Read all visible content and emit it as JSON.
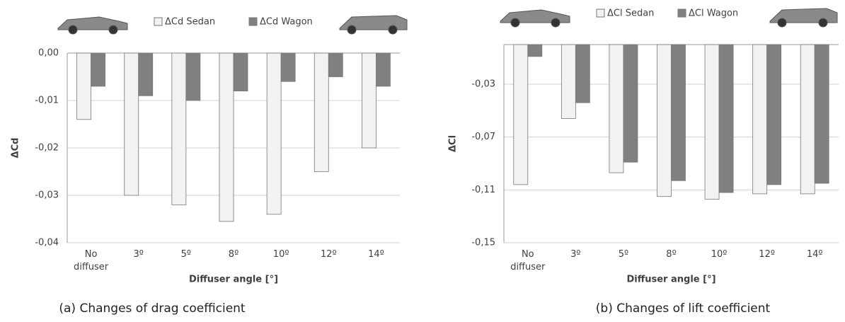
{
  "chart_data": [
    {
      "type": "bar",
      "caption": "(a) Changes of drag coefficient",
      "x_label": "Diffuser angle [°]",
      "y_label": "ΔCd",
      "categories": [
        "No diffuser",
        "3º",
        "5º",
        "8º",
        "10º",
        "12º",
        "14º"
      ],
      "series": [
        {
          "name": "ΔCd Sedan",
          "color": "#f2f2f2",
          "values": [
            -0.014,
            -0.03,
            -0.032,
            -0.0355,
            -0.034,
            -0.025,
            -0.02
          ]
        },
        {
          "name": "ΔCd Wagon",
          "color": "#808080",
          "values": [
            -0.007,
            -0.009,
            -0.01,
            -0.008,
            -0.006,
            -0.005,
            -0.007
          ]
        }
      ],
      "ylim": [
        -0.04,
        0
      ],
      "yticks": [
        {
          "value": 0,
          "label": "0,00"
        },
        {
          "value": -0.01,
          "label": "-0,01"
        },
        {
          "value": -0.02,
          "label": "-0,02"
        },
        {
          "value": -0.03,
          "label": "-0,03"
        },
        {
          "value": -0.04,
          "label": "-0,04"
        }
      ],
      "grid": true
    },
    {
      "type": "bar",
      "caption": "(b) Changes of lift coefficient",
      "x_label": "Diffuser angle [°]",
      "y_label": "ΔCl",
      "categories": [
        "No diffuser",
        "3º",
        "5º",
        "8º",
        "10º",
        "12º",
        "14º"
      ],
      "series": [
        {
          "name": "ΔCl Sedan",
          "color": "#f2f2f2",
          "values": [
            -0.106,
            -0.056,
            -0.097,
            -0.115,
            -0.117,
            -0.113,
            -0.113
          ]
        },
        {
          "name": "ΔCl Wagon",
          "color": "#808080",
          "values": [
            -0.009,
            -0.044,
            -0.089,
            -0.103,
            -0.112,
            -0.106,
            -0.105
          ]
        }
      ],
      "ylim": [
        -0.15,
        0
      ],
      "yticks": [
        {
          "value": -0.03,
          "label": "-0,03"
        },
        {
          "value": -0.07,
          "label": "-0,07"
        },
        {
          "value": -0.11,
          "label": "-0,11"
        },
        {
          "value": -0.15,
          "label": "-0,15"
        }
      ],
      "grid": true
    }
  ]
}
